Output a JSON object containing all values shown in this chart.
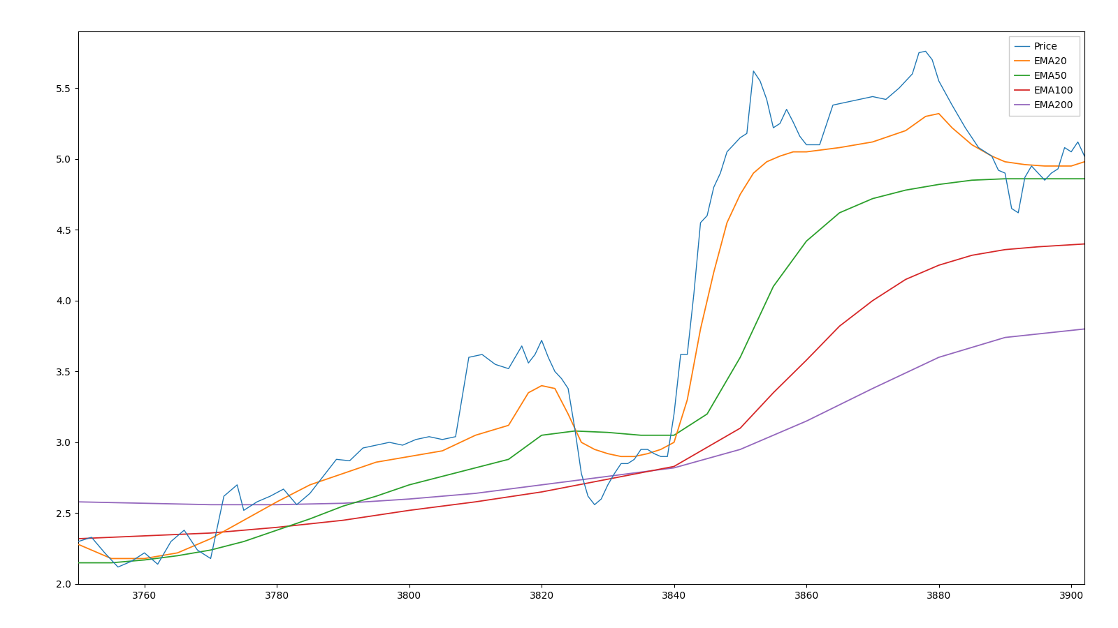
{
  "x_start": 3750,
  "x_end": 3902,
  "ylim": [
    2.0,
    5.9
  ],
  "xlim": [
    3750,
    3902
  ],
  "xticks": [
    3760,
    3780,
    3800,
    3820,
    3840,
    3860,
    3880,
    3900
  ],
  "yticks": [
    2.0,
    2.5,
    3.0,
    3.5,
    4.0,
    4.5,
    5.0,
    5.5
  ],
  "price_color": "#1f77b4",
  "ema20_color": "#ff7f0e",
  "ema50_color": "#2ca02c",
  "ema100_color": "#d62728",
  "ema200_color": "#9467bd",
  "bg_color": "#ffffff",
  "legend_labels": [
    "Price",
    "EMA20",
    "EMA50",
    "EMA100",
    "EMA200"
  ],
  "figsize": [
    16.0,
    9.0
  ],
  "dpi": 100,
  "price_keypoints": [
    [
      3750,
      2.3
    ],
    [
      3752,
      2.33
    ],
    [
      3754,
      2.22
    ],
    [
      3756,
      2.12
    ],
    [
      3758,
      2.16
    ],
    [
      3760,
      2.22
    ],
    [
      3762,
      2.14
    ],
    [
      3764,
      2.3
    ],
    [
      3766,
      2.38
    ],
    [
      3768,
      2.24
    ],
    [
      3770,
      2.18
    ],
    [
      3772,
      2.62
    ],
    [
      3774,
      2.7
    ],
    [
      3775,
      2.52
    ],
    [
      3777,
      2.58
    ],
    [
      3779,
      2.62
    ],
    [
      3781,
      2.67
    ],
    [
      3783,
      2.56
    ],
    [
      3785,
      2.64
    ],
    [
      3787,
      2.76
    ],
    [
      3789,
      2.88
    ],
    [
      3791,
      2.87
    ],
    [
      3793,
      2.96
    ],
    [
      3795,
      2.98
    ],
    [
      3797,
      3.0
    ],
    [
      3799,
      2.98
    ],
    [
      3801,
      3.02
    ],
    [
      3803,
      3.04
    ],
    [
      3805,
      3.02
    ],
    [
      3807,
      3.04
    ],
    [
      3809,
      3.6
    ],
    [
      3811,
      3.62
    ],
    [
      3813,
      3.55
    ],
    [
      3815,
      3.52
    ],
    [
      3816,
      3.6
    ],
    [
      3817,
      3.68
    ],
    [
      3818,
      3.56
    ],
    [
      3819,
      3.62
    ],
    [
      3820,
      3.72
    ],
    [
      3821,
      3.6
    ],
    [
      3822,
      3.5
    ],
    [
      3823,
      3.45
    ],
    [
      3824,
      3.38
    ],
    [
      3825,
      3.1
    ],
    [
      3826,
      2.78
    ],
    [
      3827,
      2.62
    ],
    [
      3828,
      2.56
    ],
    [
      3829,
      2.6
    ],
    [
      3830,
      2.7
    ],
    [
      3831,
      2.78
    ],
    [
      3832,
      2.85
    ],
    [
      3833,
      2.85
    ],
    [
      3834,
      2.88
    ],
    [
      3835,
      2.95
    ],
    [
      3836,
      2.95
    ],
    [
      3837,
      2.92
    ],
    [
      3838,
      2.9
    ],
    [
      3839,
      2.9
    ],
    [
      3840,
      3.2
    ],
    [
      3841,
      3.62
    ],
    [
      3842,
      3.62
    ],
    [
      3843,
      4.05
    ],
    [
      3844,
      4.55
    ],
    [
      3845,
      4.6
    ],
    [
      3846,
      4.8
    ],
    [
      3847,
      4.9
    ],
    [
      3848,
      5.05
    ],
    [
      3849,
      5.1
    ],
    [
      3850,
      5.15
    ],
    [
      3851,
      5.18
    ],
    [
      3852,
      5.62
    ],
    [
      3853,
      5.55
    ],
    [
      3854,
      5.42
    ],
    [
      3855,
      5.22
    ],
    [
      3856,
      5.25
    ],
    [
      3857,
      5.35
    ],
    [
      3858,
      5.26
    ],
    [
      3859,
      5.16
    ],
    [
      3860,
      5.1
    ],
    [
      3862,
      5.1
    ],
    [
      3864,
      5.38
    ],
    [
      3866,
      5.4
    ],
    [
      3868,
      5.42
    ],
    [
      3870,
      5.44
    ],
    [
      3872,
      5.42
    ],
    [
      3874,
      5.5
    ],
    [
      3876,
      5.6
    ],
    [
      3877,
      5.75
    ],
    [
      3878,
      5.76
    ],
    [
      3879,
      5.7
    ],
    [
      3880,
      5.55
    ],
    [
      3882,
      5.38
    ],
    [
      3884,
      5.22
    ],
    [
      3886,
      5.08
    ],
    [
      3888,
      5.02
    ],
    [
      3889,
      4.92
    ],
    [
      3890,
      4.9
    ],
    [
      3891,
      4.65
    ],
    [
      3892,
      4.62
    ],
    [
      3893,
      4.87
    ],
    [
      3894,
      4.95
    ],
    [
      3895,
      4.9
    ],
    [
      3896,
      4.85
    ],
    [
      3897,
      4.9
    ],
    [
      3898,
      4.93
    ],
    [
      3899,
      5.08
    ],
    [
      3900,
      5.05
    ],
    [
      3901,
      5.12
    ],
    [
      3902,
      5.02
    ]
  ],
  "ema20_keypoints": [
    [
      3750,
      2.28
    ],
    [
      3755,
      2.18
    ],
    [
      3760,
      2.18
    ],
    [
      3765,
      2.22
    ],
    [
      3770,
      2.32
    ],
    [
      3775,
      2.45
    ],
    [
      3780,
      2.58
    ],
    [
      3785,
      2.7
    ],
    [
      3790,
      2.78
    ],
    [
      3795,
      2.86
    ],
    [
      3800,
      2.9
    ],
    [
      3805,
      2.94
    ],
    [
      3810,
      3.05
    ],
    [
      3815,
      3.12
    ],
    [
      3818,
      3.35
    ],
    [
      3820,
      3.4
    ],
    [
      3822,
      3.38
    ],
    [
      3824,
      3.2
    ],
    [
      3826,
      3.0
    ],
    [
      3828,
      2.95
    ],
    [
      3830,
      2.92
    ],
    [
      3832,
      2.9
    ],
    [
      3834,
      2.9
    ],
    [
      3836,
      2.92
    ],
    [
      3838,
      2.95
    ],
    [
      3840,
      3.0
    ],
    [
      3842,
      3.3
    ],
    [
      3844,
      3.8
    ],
    [
      3846,
      4.2
    ],
    [
      3848,
      4.55
    ],
    [
      3850,
      4.75
    ],
    [
      3852,
      4.9
    ],
    [
      3854,
      4.98
    ],
    [
      3856,
      5.02
    ],
    [
      3858,
      5.05
    ],
    [
      3860,
      5.05
    ],
    [
      3865,
      5.08
    ],
    [
      3870,
      5.12
    ],
    [
      3875,
      5.2
    ],
    [
      3878,
      5.3
    ],
    [
      3880,
      5.32
    ],
    [
      3882,
      5.22
    ],
    [
      3885,
      5.1
    ],
    [
      3888,
      5.02
    ],
    [
      3890,
      4.98
    ],
    [
      3893,
      4.96
    ],
    [
      3896,
      4.95
    ],
    [
      3900,
      4.95
    ],
    [
      3902,
      4.98
    ]
  ],
  "ema50_keypoints": [
    [
      3750,
      2.15
    ],
    [
      3755,
      2.15
    ],
    [
      3760,
      2.17
    ],
    [
      3765,
      2.2
    ],
    [
      3770,
      2.24
    ],
    [
      3775,
      2.3
    ],
    [
      3780,
      2.38
    ],
    [
      3785,
      2.46
    ],
    [
      3790,
      2.55
    ],
    [
      3795,
      2.62
    ],
    [
      3800,
      2.7
    ],
    [
      3805,
      2.76
    ],
    [
      3810,
      2.82
    ],
    [
      3815,
      2.88
    ],
    [
      3820,
      3.05
    ],
    [
      3825,
      3.08
    ],
    [
      3830,
      3.07
    ],
    [
      3835,
      3.05
    ],
    [
      3840,
      3.05
    ],
    [
      3845,
      3.2
    ],
    [
      3850,
      3.6
    ],
    [
      3855,
      4.1
    ],
    [
      3860,
      4.42
    ],
    [
      3865,
      4.62
    ],
    [
      3870,
      4.72
    ],
    [
      3875,
      4.78
    ],
    [
      3880,
      4.82
    ],
    [
      3885,
      4.85
    ],
    [
      3890,
      4.86
    ],
    [
      3895,
      4.86
    ],
    [
      3902,
      4.86
    ]
  ],
  "ema100_keypoints": [
    [
      3750,
      2.32
    ],
    [
      3760,
      2.34
    ],
    [
      3770,
      2.36
    ],
    [
      3780,
      2.4
    ],
    [
      3790,
      2.45
    ],
    [
      3800,
      2.52
    ],
    [
      3810,
      2.58
    ],
    [
      3820,
      2.65
    ],
    [
      3830,
      2.74
    ],
    [
      3840,
      2.83
    ],
    [
      3850,
      3.1
    ],
    [
      3855,
      3.35
    ],
    [
      3860,
      3.58
    ],
    [
      3865,
      3.82
    ],
    [
      3870,
      4.0
    ],
    [
      3875,
      4.15
    ],
    [
      3880,
      4.25
    ],
    [
      3885,
      4.32
    ],
    [
      3890,
      4.36
    ],
    [
      3895,
      4.38
    ],
    [
      3902,
      4.4
    ]
  ],
  "ema200_keypoints": [
    [
      3750,
      2.58
    ],
    [
      3760,
      2.57
    ],
    [
      3770,
      2.56
    ],
    [
      3780,
      2.56
    ],
    [
      3790,
      2.57
    ],
    [
      3800,
      2.6
    ],
    [
      3810,
      2.64
    ],
    [
      3820,
      2.7
    ],
    [
      3830,
      2.76
    ],
    [
      3840,
      2.82
    ],
    [
      3850,
      2.95
    ],
    [
      3860,
      3.15
    ],
    [
      3870,
      3.38
    ],
    [
      3880,
      3.6
    ],
    [
      3890,
      3.74
    ],
    [
      3902,
      3.8
    ]
  ]
}
